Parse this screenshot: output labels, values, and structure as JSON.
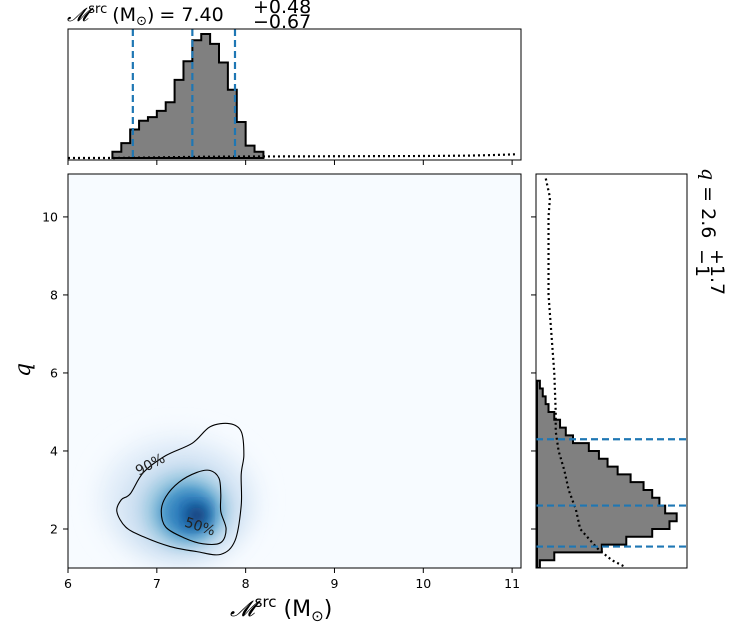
{
  "chart_data": [
    {
      "type": "histogram",
      "panel": "top-marginal",
      "title": {
        "symbol": "𝓜",
        "superscript": "src",
        "unit": "(M",
        "unit_sub": "⊙",
        "unit_close": ")",
        "equals": "= 7.40",
        "plus": "+0.48",
        "minus": "−0.67"
      },
      "xlim": [
        6.0,
        11.1
      ],
      "median": 7.4,
      "interval": [
        6.73,
        7.88
      ],
      "bin_edges": [
        6.5,
        6.6,
        6.7,
        6.8,
        6.9,
        7.0,
        7.1,
        7.2,
        7.3,
        7.4,
        7.5,
        7.6,
        7.7,
        7.8,
        7.9,
        8.0,
        8.1,
        8.2
      ],
      "counts": [
        0.05,
        0.12,
        0.23,
        0.3,
        0.33,
        0.38,
        0.45,
        0.63,
        0.78,
        0.95,
        1.0,
        0.92,
        0.77,
        0.55,
        0.29,
        0.1,
        0.05
      ],
      "prior_x": [
        6.0,
        6.5,
        7.0,
        7.5,
        8.0,
        8.5,
        9.0,
        9.5,
        10.0,
        10.5,
        10.8,
        11.05
      ],
      "prior_y": [
        0.0,
        0.0,
        0.005,
        0.01,
        0.012,
        0.013,
        0.014,
        0.015,
        0.016,
        0.019,
        0.024,
        0.03
      ],
      "legend": "none",
      "grid": false
    },
    {
      "type": "density",
      "panel": "main",
      "xlabel": {
        "symbol": "𝓜",
        "superscript": "src",
        "unit": "(M",
        "unit_sub": "⊙",
        "unit_close": ")"
      },
      "ylabel": "q",
      "xlim": [
        6.0,
        11.1
      ],
      "ylim": [
        1.0,
        11.1
      ],
      "xticks": [
        "6",
        "7",
        "8",
        "9",
        "10",
        "11"
      ],
      "yticks": [
        "2",
        "4",
        "6",
        "8",
        "10"
      ],
      "colormap": "Blues",
      "peak": [
        7.45,
        2.35
      ],
      "contours": [
        {
          "label": "90%",
          "label_pos": [
            6.95,
            3.55
          ],
          "points": [
            [
              6.7,
              2.9
            ],
            [
              6.85,
              3.45
            ],
            [
              7.1,
              3.88
            ],
            [
              7.4,
              4.2
            ],
            [
              7.6,
              4.62
            ],
            [
              7.82,
              4.7
            ],
            [
              7.95,
              4.5
            ],
            [
              7.98,
              3.9
            ],
            [
              7.95,
              3.4
            ],
            [
              7.95,
              2.6
            ],
            [
              7.88,
              1.7
            ],
            [
              7.72,
              1.35
            ],
            [
              7.45,
              1.42
            ],
            [
              7.15,
              1.55
            ],
            [
              6.85,
              1.8
            ],
            [
              6.65,
              2.05
            ],
            [
              6.55,
              2.45
            ],
            [
              6.6,
              2.75
            ]
          ]
        },
        {
          "label": "50%",
          "label_pos": [
            7.47,
            1.95
          ],
          "points": [
            [
              7.05,
              2.45
            ],
            [
              7.1,
              2.82
            ],
            [
              7.25,
              3.2
            ],
            [
              7.45,
              3.45
            ],
            [
              7.6,
              3.5
            ],
            [
              7.7,
              3.3
            ],
            [
              7.72,
              2.9
            ],
            [
              7.72,
              2.45
            ],
            [
              7.78,
              2.0
            ],
            [
              7.72,
              1.65
            ],
            [
              7.52,
              1.62
            ],
            [
              7.3,
              1.78
            ],
            [
              7.1,
              2.05
            ]
          ]
        }
      ],
      "grid": false
    },
    {
      "type": "histogram",
      "panel": "right-marginal",
      "orientation": "horizontal",
      "title": {
        "symbol": "q",
        "equals": "= 2.6",
        "plus": "+1.7",
        "minus": "−1"
      },
      "ylim": [
        1.0,
        11.1
      ],
      "median": 2.6,
      "interval": [
        1.55,
        4.3
      ],
      "bin_edges": [
        1.0,
        1.2,
        1.4,
        1.6,
        1.8,
        2.0,
        2.2,
        2.4,
        2.6,
        2.8,
        3.0,
        3.2,
        3.4,
        3.6,
        3.8,
        4.0,
        4.2,
        4.4,
        4.6,
        4.8,
        5.0,
        5.2,
        5.4,
        5.6,
        5.8
      ],
      "counts": [
        0.02,
        0.12,
        0.45,
        0.62,
        0.8,
        0.92,
        0.97,
        0.89,
        0.85,
        0.8,
        0.74,
        0.65,
        0.56,
        0.49,
        0.43,
        0.36,
        0.25,
        0.2,
        0.16,
        0.12,
        0.08,
        0.06,
        0.04,
        0.02
      ],
      "prior_q": [
        1.05,
        1.2,
        1.5,
        2.0,
        2.5,
        3.0,
        3.5,
        4.0,
        4.5,
        5.0,
        6.0,
        7.0,
        8.0,
        9.0,
        10.0,
        10.5,
        11.0
      ],
      "prior_w": [
        0.6,
        0.52,
        0.42,
        0.3,
        0.27,
        0.22,
        0.19,
        0.15,
        0.13,
        0.13,
        0.12,
        0.1,
        0.08,
        0.08,
        0.08,
        0.09,
        0.06
      ],
      "legend": "none",
      "grid": false
    }
  ],
  "colors": {
    "hist_fill": "#808080",
    "hist_edge": "#000000",
    "interval_line": "#1f77b4",
    "contour": "#000000",
    "density_high": "#08306b",
    "density_low": "#f7fbff"
  }
}
